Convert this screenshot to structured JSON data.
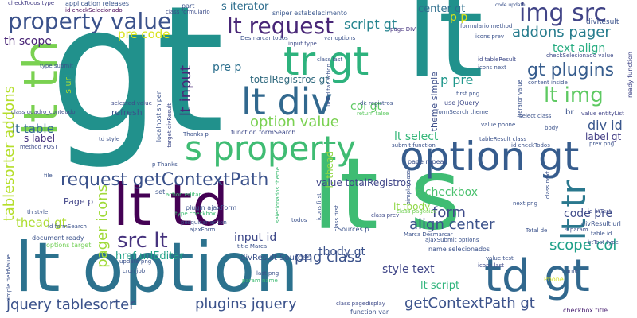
{
  "words": [
    {
      "text": "gt",
      "color": "#21918c"
    },
    {
      "text": "lt",
      "color": "#21918c"
    },
    {
      "text": "lt option",
      "color": "#2c728e"
    },
    {
      "text": "lt s",
      "color": "#3fbc73"
    },
    {
      "text": "lt td",
      "color": "#440154"
    },
    {
      "text": "option gt",
      "color": "#365c8d"
    },
    {
      "text": "td gt",
      "color": "#31688e"
    },
    {
      "text": "tr gt",
      "color": "#2db27d"
    },
    {
      "text": "lt th",
      "color": "#7ad151"
    },
    {
      "text": "lt div",
      "color": "#31688e"
    },
    {
      "text": "s property",
      "color": "#3fbc73"
    },
    {
      "text": "property value",
      "color": "#3b528b"
    },
    {
      "text": "img src",
      "color": "#414487"
    },
    {
      "text": "lt request",
      "color": "#482677"
    },
    {
      "text": "lt tr",
      "color": "#2a788e"
    },
    {
      "text": "src lt",
      "color": "#46337e"
    },
    {
      "text": "request getContextPath",
      "color": "#3b528b"
    },
    {
      "text": "tablesorter addons",
      "color": "#b5de2b"
    },
    {
      "text": "lt img",
      "color": "#5ec962"
    },
    {
      "text": "gt plugins",
      "color": "#365c8d"
    },
    {
      "text": "addons pager",
      "color": "#287d8e"
    },
    {
      "text": "jquery tablesorter",
      "color": "#3b528b"
    },
    {
      "text": "plugins jquery",
      "color": "#3b528b"
    },
    {
      "text": "getContextPath gt",
      "color": "#3b528b"
    },
    {
      "text": "lt input",
      "color": "#482878"
    },
    {
      "text": "option value",
      "color": "#7ad151"
    },
    {
      "text": "pager icons",
      "color": "#a0da39"
    },
    {
      "text": "png class",
      "color": "#3b528b"
    },
    {
      "text": "pre code",
      "color": "#d8e219"
    },
    {
      "text": "script gt",
      "color": "#25848e"
    },
    {
      "text": "lt table",
      "color": "#31688e"
    },
    {
      "text": "code pre",
      "color": "#3e4a89"
    },
    {
      "text": "form",
      "color": "#3e4a89"
    },
    {
      "text": "align center",
      "color": "#3b528b"
    },
    {
      "text": "div id",
      "color": "#39568c"
    },
    {
      "text": "p pre",
      "color": "#1f978b"
    },
    {
      "text": "s iterator",
      "color": "#2e6e8e"
    },
    {
      "text": "text align",
      "color": "#27ad81"
    },
    {
      "text": "scope col",
      "color": "#1fa088"
    },
    {
      "text": "col gt",
      "color": "#5ec962"
    },
    {
      "text": "style text",
      "color": "#404688"
    },
    {
      "text": "thead gt",
      "color": "#addc30"
    },
    {
      "text": "tbody gt",
      "color": "#3b528b"
    },
    {
      "text": "lt select",
      "color": "#35b779"
    },
    {
      "text": "label gt",
      "color": "#433e85"
    },
    {
      "text": "s checkbox",
      "color": "#4ac16d"
    },
    {
      "text": "th scope",
      "color": "#482475"
    },
    {
      "text": "center gt",
      "color": "#2e6f8e"
    },
    {
      "text": "pre p",
      "color": "#2d708e"
    },
    {
      "text": "s label",
      "color": "#46327e"
    },
    {
      "text": "input id",
      "color": "#3e4989"
    },
    {
      "text": "lt thead",
      "color": "#90d743"
    },
    {
      "text": "lt tbody",
      "color": "#8fd744"
    },
    {
      "text": "lt script",
      "color": "#2fb47c"
    },
    {
      "text": "href urlEditar",
      "color": "#1fa187"
    },
    {
      "text": "value totalRegistros",
      "color": "#404688"
    },
    {
      "text": "totalRegistros gt",
      "color": "#30697e"
    },
    {
      "text": "refresh",
      "color": "#3a538b"
    },
    {
      "text": "theme simple",
      "color": "#3d4e8a"
    },
    {
      "text": "divResult Sources",
      "color": "#3b528b"
    },
    {
      "text": "Page p",
      "color": "#414487"
    },
    {
      "text": "s url",
      "color": "#a2da37"
    },
    {
      "text": "name selecionados",
      "color": "#3b528b"
    },
    {
      "text": "checkbox title",
      "color": "#481f70"
    },
    {
      "text": "class pagedisplay",
      "color": "#3e4a89"
    },
    {
      "text": "function var",
      "color": "#3b528b"
    },
    {
      "text": "id checkSelecionado",
      "color": "#440154"
    },
    {
      "text": "checkTodos type",
      "color": "#433d84"
    },
    {
      "text": "application releases",
      "color": "#39558c"
    },
    {
      "text": "sniper estabelecimento",
      "color": "#39568c"
    },
    {
      "text": "class formulario",
      "color": "#3d4d8a"
    },
    {
      "text": "Desmarcar todos",
      "color": "#3b528b"
    },
    {
      "text": "input type",
      "color": "#3e4a89"
    },
    {
      "text": "var options",
      "color": "#3b528b"
    },
    {
      "text": "page DIV",
      "color": "#46337e"
    },
    {
      "text": "divResult",
      "color": "#3b528b"
    },
    {
      "text": "id tableResult",
      "color": "#3e4a89"
    },
    {
      "text": "icons next",
      "color": "#3b528b"
    },
    {
      "text": "content inside",
      "color": "#3b528b"
    },
    {
      "text": "checkSelecionado value",
      "color": "#3e4a89"
    },
    {
      "text": "ready function",
      "color": "#404688"
    },
    {
      "text": "use JQuery",
      "color": "#3e4a89"
    },
    {
      "text": "formSearch theme",
      "color": "#3b528b"
    },
    {
      "text": "value entityList",
      "color": "#414487"
    },
    {
      "text": "selected value",
      "color": "#3e4a89"
    },
    {
      "text": "localhost sniper",
      "color": "#3b528b"
    },
    {
      "text": "target divResult",
      "color": "#3e4a89"
    },
    {
      "text": "function formSearch",
      "color": "#3e4a89"
    },
    {
      "text": "submit function",
      "color": "#3b528b"
    },
    {
      "text": "method POST",
      "color": "#3e4a89"
    },
    {
      "text": "td style",
      "color": "#3b528b"
    },
    {
      "text": "Thanks p",
      "color": "#3b528b"
    },
    {
      "text": "p Thanks",
      "color": "#3b528b"
    },
    {
      "text": "document ready",
      "color": "#3b528b"
    },
    {
      "text": "options target",
      "color": "#73d056"
    },
    {
      "text": "plugin ajaxForm",
      "color": "#3b528b"
    },
    {
      "text": "action editar",
      "color": "#3fbc73"
    },
    {
      "text": "type checkbox",
      "color": "#3fbc73"
    },
    {
      "text": "pesquisar action",
      "color": "#3b528b"
    },
    {
      "text": "Sources p",
      "color": "#3b528b"
    },
    {
      "text": "Marca Desmarcar",
      "color": "#3b528b"
    },
    {
      "text": "ajaxSubmit options",
      "color": "#3b528b"
    },
    {
      "text": "class prev",
      "color": "#3e4a89"
    },
    {
      "text": "class pagesize",
      "color": "#73d056"
    },
    {
      "text": "next png",
      "color": "#3b528b"
    },
    {
      "text": "id btTest",
      "color": "#3e4a89"
    },
    {
      "text": "s param",
      "color": "#3e4a89"
    },
    {
      "text": "table id",
      "color": "#3b528b"
    },
    {
      "text": "btTest type",
      "color": "#3b528b"
    },
    {
      "text": "divResult url",
      "color": "#3b528b"
    },
    {
      "text": "value test",
      "color": "#3b528b"
    },
    {
      "text": "icons last",
      "color": "#3e4a89"
    },
    {
      "text": "Phone",
      "color": "#d8e219"
    },
    {
      "text": "name",
      "color": "#3b528b"
    },
    {
      "text": "param name",
      "color": "#3fbc73"
    },
    {
      "text": "last png",
      "color": "#3b528b"
    },
    {
      "text": "update png",
      "color": "#3b528b"
    },
    {
      "text": "cron job",
      "color": "#3b528b"
    },
    {
      "text": "class quadro_conteudo",
      "color": "#3e4a89"
    },
    {
      "text": "type submit",
      "color": "#3b528b"
    },
    {
      "text": "page repeat",
      "color": "#3b528b"
    },
    {
      "text": "tableResult class",
      "color": "#3b528b"
    },
    {
      "text": "id checkTodos",
      "color": "#3b528b"
    },
    {
      "text": "value phone",
      "color": "#3b528b"
    },
    {
      "text": "return false",
      "color": "#5ec962"
    },
    {
      "text": "de registros",
      "color": "#3b528b"
    },
    {
      "text": "select class",
      "color": "#3b528b"
    },
    {
      "text": "first png",
      "color": "#3b528b"
    },
    {
      "text": "code update",
      "color": "#3b528b"
    },
    {
      "text": "formulario method",
      "color": "#3b528b"
    },
    {
      "text": "icons prev",
      "color": "#3b528b"
    },
    {
      "text": "Total de",
      "color": "#3b528b"
    },
    {
      "text": "class last",
      "color": "#3b528b"
    },
    {
      "text": "p p",
      "color": "#d8e219"
    },
    {
      "text": "br",
      "color": "#3b528b"
    },
    {
      "text": "part",
      "color": "#3b528b"
    },
    {
      "text": "file",
      "color": "#3b528b"
    },
    {
      "text": "set",
      "color": "#3b528b"
    },
    {
      "text": "todos",
      "color": "#3b528b"
    },
    {
      "text": "body",
      "color": "#3b528b"
    },
    {
      "text": "prev png",
      "color": "#3b528b"
    },
    {
      "text": "th style",
      "color": "#3b528b"
    },
    {
      "text": "id formSearch",
      "color": "#3b528b"
    },
    {
      "text": "simple fieldValue",
      "color": "#3b528b"
    },
    {
      "text": "class next",
      "color": "#3b528b"
    },
    {
      "text": "icons first",
      "color": "#3b528b"
    },
    {
      "text": "class first",
      "color": "#3b528b"
    },
    {
      "text": "urlEditar action",
      "color": "#3b528b"
    },
    {
      "text": "selecionados theme",
      "color": "#3fbc73"
    },
    {
      "text": "title Marca",
      "color": "#3b528b"
    },
    {
      "text": "simple class",
      "color": "#3b528b"
    },
    {
      "text": "iterator value",
      "color": "#3b528b"
    },
    {
      "text": "ajaxForm",
      "color": "#3b528b"
    }
  ]
}
